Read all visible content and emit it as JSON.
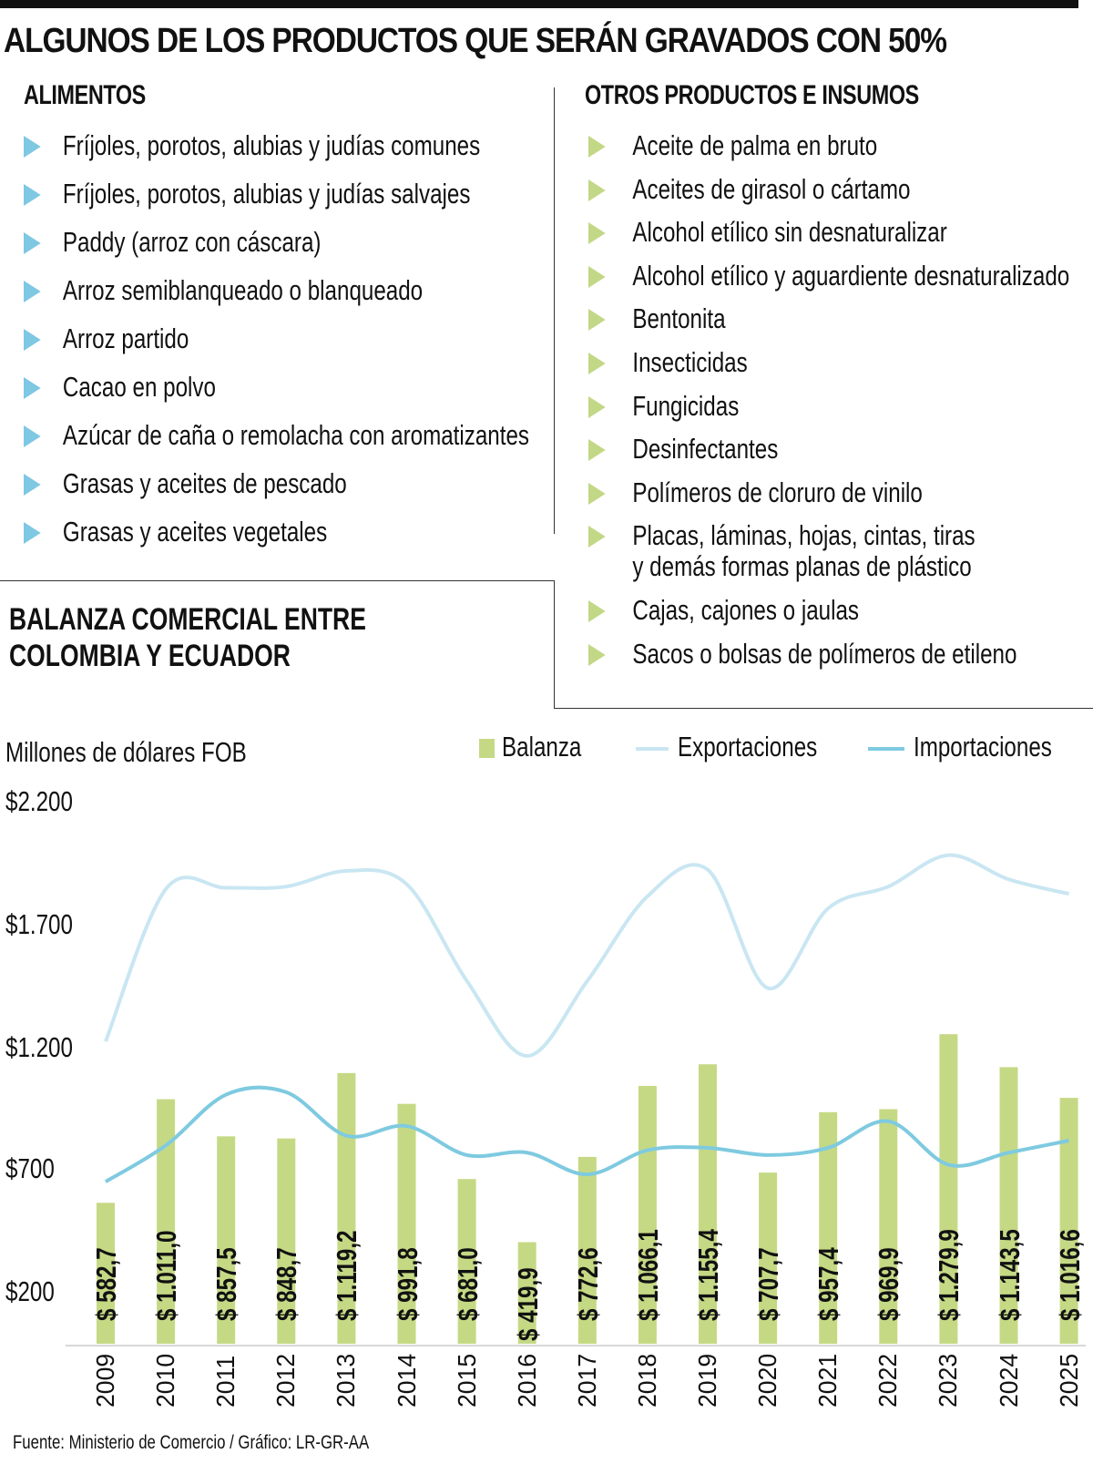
{
  "header": {
    "title": "ALGUNOS DE LOS PRODUCTOS QUE SERÁN GRAVADOS CON 50%"
  },
  "alimentos": {
    "title": "ALIMENTOS",
    "bullet_color": "#7ec8e3",
    "items": [
      "Fríjoles, porotos, alubias y judías comunes",
      "Fríjoles, porotos, alubias y judías salvajes",
      "Paddy (arroz con cáscara)",
      "Arroz semiblanqueado o blanqueado",
      "Arroz partido",
      "Cacao en polvo",
      "Azúcar de caña o remolacha con aromatizantes",
      "Grasas y aceites de pescado",
      "Grasas y aceites vegetales"
    ]
  },
  "otros": {
    "title": "OTROS PRODUCTOS E INSUMOS",
    "bullet_color": "#c2d886",
    "items": [
      "Aceite de palma en bruto",
      "Aceites de girasol o cártamo",
      "Alcohol etílico sin desnaturalizar",
      "Alcohol etílico y aguardiente desnaturalizado",
      "Bentonita",
      "Insecticidas",
      "Fungicidas",
      "Desinfectantes",
      "Polímeros de cloruro de vinilo",
      "Placas, láminas, hojas, cintas, tiras",
      "y demás formas planas de plástico",
      "Cajas, cajones o jaulas",
      "Sacos o bolsas de polímeros de etileno"
    ]
  },
  "chart": {
    "title_line1": "BALANZA COMERCIAL ENTRE",
    "title_line2": "COLOMBIA Y ECUADOR",
    "unit": "Millones de dólares FOB",
    "legend": {
      "balanza": "Balanza",
      "exportaciones": "Exportaciones",
      "importaciones": "Importaciones"
    },
    "y_ticks": [
      "$2.200",
      "$1.700",
      "$1.200",
      "$700",
      "$200"
    ],
    "bar_labels": [
      "$ 582,7",
      "$ 1.011,0",
      "$ 857,5",
      "$ 848,7",
      "$ 1.119,2",
      "$ 991,8",
      "$ 681,0",
      "$ 419,9",
      "$ 772,6",
      "$ 1.066,1",
      "$ 1.155,4",
      "$ 707,7",
      "$ 957,4",
      "$ 969,9",
      "$ 1.279,9",
      "$ 1.143,5",
      "$ 1.016,6"
    ],
    "years": [
      "2009",
      "2010",
      "2011",
      "2012",
      "2013",
      "2014",
      "2015",
      "2016",
      "2017",
      "2018",
      "2019",
      "2020",
      "2021",
      "2022",
      "2023",
      "2024",
      "2025"
    ]
  },
  "colors": {
    "balanza": "#c5d985",
    "exportaciones": "#c9e6f2",
    "importaciones": "#7ecae0",
    "text": "#111111"
  },
  "source": "Fuente:  Ministerio de Comercio / Gráfico: LR-GR-AA",
  "chart_data": {
    "type": "bar",
    "title": "Balanza comercial entre Colombia y Ecuador",
    "ylabel": "Millones de dólares FOB",
    "xlabel": "",
    "categories": [
      "2009",
      "2010",
      "2011",
      "2012",
      "2013",
      "2014",
      "2015",
      "2016",
      "2017",
      "2018",
      "2019",
      "2020",
      "2021",
      "2022",
      "2023",
      "2024",
      "2025"
    ],
    "y_ticks": [
      200,
      700,
      1200,
      1700,
      2200
    ],
    "ylim": [
      0,
      2200
    ],
    "grid": false,
    "legend_position": "top",
    "series": [
      {
        "name": "Balanza",
        "type": "bar",
        "values": [
          582.7,
          1011.0,
          857.5,
          848.7,
          1119.2,
          991.8,
          681.0,
          419.9,
          772.6,
          1066.1,
          1155.4,
          707.7,
          957.4,
          969.9,
          1279.9,
          1143.5,
          1016.6
        ]
      },
      {
        "name": "Exportaciones",
        "type": "line",
        "values": [
          1250,
          1880,
          1885,
          1890,
          1955,
          1900,
          1500,
          1190,
          1500,
          1850,
          1960,
          1470,
          1800,
          1890,
          2020,
          1920,
          1860
        ]
      },
      {
        "name": "Importaciones",
        "type": "line",
        "values": [
          670,
          820,
          1030,
          1040,
          860,
          900,
          780,
          790,
          700,
          800,
          810,
          780,
          810,
          920,
          740,
          790,
          840
        ]
      }
    ]
  }
}
